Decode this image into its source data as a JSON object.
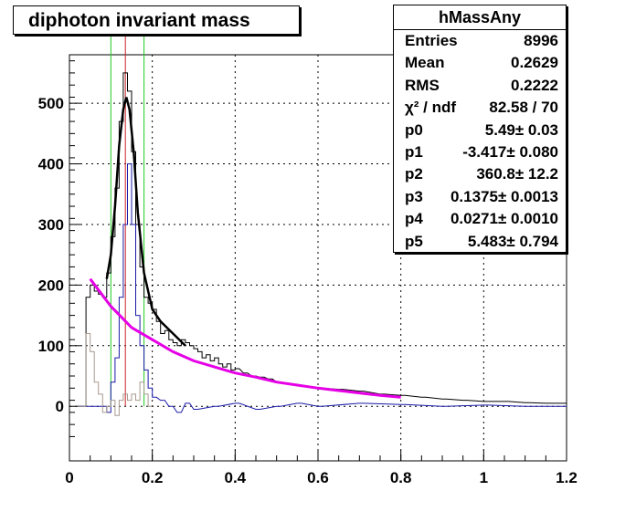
{
  "title": "diphoton invariant mass",
  "stats": {
    "name": "hMassAny",
    "rows": [
      {
        "label": "Entries",
        "value": "8996"
      },
      {
        "label": "Mean",
        "value": "0.2629"
      },
      {
        "label": "RMS",
        "value": "0.2222"
      },
      {
        "label": "χ² / ndf",
        "value": "82.58 / 70"
      },
      {
        "label": "p0",
        "value": "5.49± 0.03"
      },
      {
        "label": "p1",
        "value": "-3.417± 0.080"
      },
      {
        "label": "p2",
        "value": "360.8± 12.2"
      },
      {
        "label": "p3",
        "value": "0.1375± 0.0013"
      },
      {
        "label": "p4",
        "value": "0.0271± 0.0010"
      },
      {
        "label": "p5",
        "value": "5.483± 0.794"
      }
    ]
  },
  "colors": {
    "black_hist": "#000000",
    "blue_hist": "#1a1aa8",
    "gray_hist": "#a89a90",
    "fit_curve": "#000000",
    "bg_curve": "#e600e6",
    "green_lines": "#22cc22",
    "red_line": "#cc2222"
  },
  "chart_data": {
    "type": "histogram",
    "xlim": [
      0,
      1.2
    ],
    "ylim": [
      -90,
      580
    ],
    "xticks": [
      0,
      0.2,
      0.4,
      0.6,
      0.8,
      1,
      1.2
    ],
    "xtick_labels": [
      "0",
      "0.2",
      "0.4",
      "0.6",
      "0.8",
      "1",
      "1.2"
    ],
    "yticks": [
      0,
      100,
      200,
      300,
      400,
      500
    ],
    "ytick_labels": [
      "0",
      "100",
      "200",
      "300",
      "400",
      "500"
    ],
    "grid": true,
    "bin_width": 0.01,
    "series": [
      {
        "id": "total",
        "color": "black",
        "x": [
          0.02,
          0.03,
          0.04,
          0.05,
          0.06,
          0.07,
          0.08,
          0.09,
          0.1,
          0.11,
          0.12,
          0.13,
          0.14,
          0.15,
          0.16,
          0.17,
          0.18,
          0.19,
          0.2,
          0.21,
          0.22,
          0.23,
          0.24,
          0.25,
          0.26,
          0.27,
          0.28,
          0.29,
          0.3,
          0.31,
          0.32,
          0.33,
          0.34,
          0.35,
          0.36,
          0.37,
          0.38,
          0.39,
          0.4,
          0.42,
          0.44,
          0.46,
          0.48,
          0.5,
          0.55,
          0.6,
          0.65,
          0.7,
          0.75,
          0.8,
          0.85,
          0.9,
          0.95,
          1.0,
          1.05,
          1.1,
          1.15,
          1.19
        ],
        "y": [
          0,
          0,
          180,
          200,
          190,
          185,
          180,
          220,
          280,
          360,
          470,
          550,
          520,
          420,
          300,
          230,
          180,
          170,
          160,
          140,
          120,
          125,
          110,
          105,
          100,
          110,
          105,
          100,
          95,
          90,
          80,
          85,
          75,
          80,
          70,
          65,
          70,
          60,
          62,
          55,
          50,
          48,
          45,
          40,
          35,
          30,
          28,
          25,
          20,
          18,
          15,
          12,
          10,
          8,
          8,
          6,
          5,
          5
        ]
      },
      {
        "id": "signal",
        "color": "blue",
        "x": [
          0.02,
          0.04,
          0.06,
          0.08,
          0.09,
          0.1,
          0.11,
          0.12,
          0.13,
          0.14,
          0.15,
          0.16,
          0.17,
          0.18,
          0.19,
          0.2,
          0.22,
          0.24,
          0.26,
          0.28,
          0.3,
          0.35,
          0.4,
          0.45,
          0.5,
          0.55,
          0.6,
          0.7,
          0.8,
          0.9,
          1.0,
          1.1,
          1.19
        ],
        "y": [
          0,
          0,
          0,
          0,
          -10,
          40,
          80,
          180,
          300,
          400,
          300,
          150,
          100,
          60,
          30,
          15,
          10,
          0,
          -10,
          5,
          -5,
          0,
          5,
          -5,
          0,
          5,
          0,
          5,
          3,
          0,
          2,
          0,
          0
        ]
      },
      {
        "id": "background",
        "color": "gray",
        "x": [
          0.02,
          0.03,
          0.04,
          0.05,
          0.06,
          0.07,
          0.08,
          0.09,
          0.1,
          0.11,
          0.12,
          0.13,
          0.14,
          0.15,
          0.16,
          0.17,
          0.18,
          0.19
        ],
        "y": [
          0,
          0,
          120,
          90,
          40,
          20,
          -10,
          0,
          10,
          -15,
          10,
          20,
          10,
          20,
          10,
          40,
          20,
          0
        ]
      },
      {
        "id": "fit",
        "color": "black",
        "type": "line",
        "x": [
          0.09,
          0.1,
          0.11,
          0.12,
          0.13,
          0.1375,
          0.145,
          0.155,
          0.165,
          0.18,
          0.2,
          0.22,
          0.25,
          0.28
        ],
        "y": [
          210,
          250,
          330,
          430,
          490,
          510,
          490,
          420,
          320,
          220,
          160,
          140,
          120,
          100
        ]
      },
      {
        "id": "background_fit",
        "color": "magenta",
        "type": "line",
        "x": [
          0.05,
          0.1,
          0.15,
          0.2,
          0.25,
          0.3,
          0.35,
          0.4,
          0.45,
          0.5,
          0.55,
          0.6,
          0.65,
          0.7,
          0.75,
          0.8
        ],
        "y": [
          210,
          165,
          130,
          110,
          90,
          75,
          65,
          55,
          48,
          40,
          35,
          30,
          26,
          22,
          18,
          15
        ]
      }
    ],
    "vertical_lines": [
      {
        "x": 0.1,
        "color": "green"
      },
      {
        "x": 0.18,
        "color": "green"
      },
      {
        "x": 0.135,
        "color": "red"
      }
    ]
  }
}
